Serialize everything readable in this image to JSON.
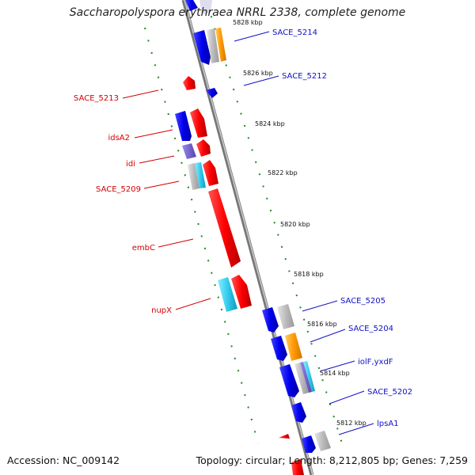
{
  "title": "Saccharopolyspora erythraea NRRL 2338, complete genome",
  "footer": {
    "accession": "Accession: NC_009142",
    "topology": "Topology: circular; Length: 8,212,805 bp; Genes: 7,259"
  },
  "scale_labels": [
    "5828 kbp",
    "5826 kbp",
    "5824 kbp",
    "5822 kbp",
    "5820 kbp",
    "5818 kbp",
    "5816 kbp",
    "5814 kbp",
    "5812 kbp"
  ],
  "left_labels": [
    "SACE_5213",
    "idsA2",
    "idi",
    "SACE_5209",
    "embC",
    "nupX"
  ],
  "right_labels": [
    "SACE_5214",
    "SACE_5212",
    "SACE_5205",
    "SACE_5204",
    "iolF,yxdF",
    "SACE_5202",
    "lpsA1"
  ],
  "colors": {
    "forward_gene": "#ff0000",
    "reverse_gene": "#0000ee",
    "orange_track": "#ff9900",
    "cyan_track": "#33ccee",
    "gray_track": "#bbbbbb",
    "purple_track": "#7766cc",
    "backbone": "#888888",
    "scale_ticks": "#228822",
    "label_left": "#d40000",
    "label_right": "#1010c8"
  }
}
